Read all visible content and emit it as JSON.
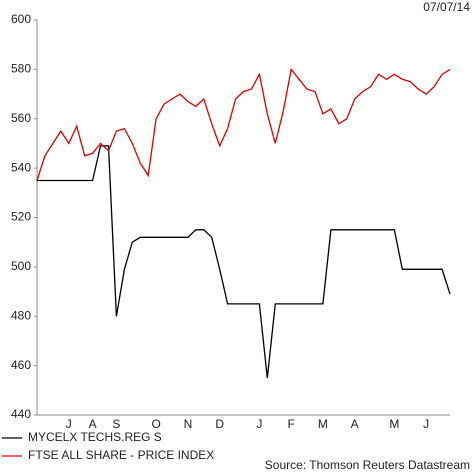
{
  "date": "07/07/14",
  "source": "Source: Thomson Reuters Datastream",
  "chart_data": {
    "type": "line",
    "categories": [
      null,
      null,
      null,
      null,
      "J",
      null,
      null,
      "A",
      null,
      null,
      "S",
      null,
      null,
      null,
      null,
      "O",
      null,
      null,
      null,
      "N",
      null,
      null,
      null,
      "D",
      null,
      null,
      null,
      null,
      "J",
      null,
      null,
      null,
      "F",
      null,
      null,
      null,
      "M",
      null,
      null,
      null,
      "A",
      null,
      null,
      null,
      null,
      "M",
      null,
      null,
      null,
      "J",
      null,
      null,
      null
    ],
    "series": [
      {
        "name": "MYCELX TECHS.REG S",
        "color": "#000000",
        "values": [
          535,
          535,
          535,
          535,
          535,
          535,
          535,
          535,
          549,
          549,
          480,
          499,
          510,
          512,
          512,
          512,
          512,
          512,
          512,
          512,
          515,
          515,
          512,
          499,
          485,
          485,
          485,
          485,
          485,
          455,
          485,
          485,
          485,
          485,
          485,
          485,
          485,
          515,
          515,
          515,
          515,
          515,
          515,
          515,
          515,
          515,
          499,
          499,
          499,
          499,
          499,
          499,
          489
        ]
      },
      {
        "name": "FTSE ALL SHARE - PRICE INDEX",
        "color": "#dd0000",
        "values": [
          535,
          545,
          550,
          555,
          550,
          557,
          545,
          546,
          550,
          547,
          555,
          556,
          550,
          542,
          537,
          560,
          566,
          568,
          570,
          567,
          565,
          568,
          558,
          549,
          556,
          568,
          571,
          572,
          578,
          562,
          550,
          563,
          580,
          576,
          572,
          571,
          562,
          564,
          558,
          560,
          568,
          571,
          573,
          578,
          576,
          578,
          576,
          575,
          572,
          570,
          573,
          578,
          580
        ]
      }
    ],
    "ylim": [
      440,
      600
    ],
    "yticks": [
      440,
      460,
      480,
      500,
      520,
      540,
      560,
      580,
      600
    ]
  }
}
